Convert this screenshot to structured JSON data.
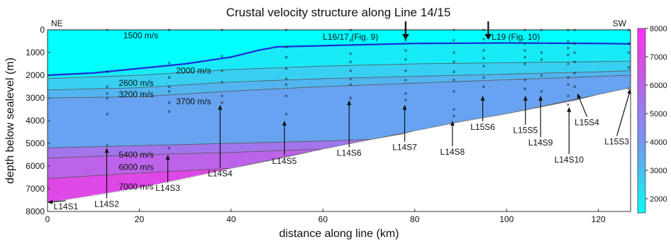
{
  "chart_data": {
    "type": "area",
    "title": "Crustal velocity structure along Line 14/15",
    "xlabel": "distance along line (km)",
    "ylabel": "depth below sealevel (m)",
    "xlim": [
      0,
      127
    ],
    "ylim": [
      8000,
      0
    ],
    "x_ticks": [
      0,
      20,
      40,
      60,
      80,
      100,
      120
    ],
    "y_ticks": [
      0,
      1000,
      2000,
      3000,
      4000,
      5000,
      6000,
      7000,
      8000
    ],
    "colorbar": {
      "min": 1500,
      "max": 8000,
      "ticks": [
        2000,
        3000,
        4000,
        5000,
        6000,
        7000,
        8000
      ],
      "colors": [
        "#00ffff",
        "#2fd8f2",
        "#59aef0",
        "#7f8ff0",
        "#9a7aee",
        "#c25fe9",
        "#e046e6",
        "#ff2fff"
      ]
    },
    "direction_labels": {
      "left": "NE",
      "right": "SW"
    },
    "sea_surface_depth": 0,
    "seafloor": {
      "x": [
        0,
        10,
        20,
        30,
        40,
        46,
        50,
        60,
        70,
        80,
        100,
        110,
        120,
        127
      ],
      "y": [
        2000,
        1900,
        1700,
        1500,
        1200,
        900,
        750,
        700,
        650,
        600,
        580,
        590,
        600,
        620
      ]
    },
    "basement": {
      "x": [
        0,
        10,
        20,
        30,
        40,
        50,
        60,
        70,
        77,
        80,
        90,
        100,
        110,
        115,
        120,
        127
      ],
      "y": [
        7600,
        7300,
        6950,
        6550,
        6100,
        5700,
        5250,
        4850,
        4600,
        4450,
        4050,
        3700,
        3300,
        3100,
        2850,
        2550
      ]
    },
    "layers": [
      {
        "label": "2000 m/s",
        "velocity": 2000,
        "x": [
          0,
          20,
          40,
          60,
          80,
          100,
          120,
          127
        ],
        "y": [
          2150,
          2000,
          1750,
          1600,
          1500,
          1450,
          1400,
          1380
        ]
      },
      {
        "label": "2600 m/s",
        "velocity": 2600,
        "x": [
          0,
          20,
          40,
          60,
          80,
          100,
          120,
          127
        ],
        "y": [
          2650,
          2550,
          2300,
          2150,
          2050,
          1950,
          1850,
          1800
        ]
      },
      {
        "label": "3200 m/s",
        "velocity": 3200,
        "x": [
          0,
          20,
          40,
          60,
          80,
          100,
          120,
          127
        ],
        "y": [
          3000,
          2950,
          2700,
          2500,
          2350,
          2200,
          2050,
          2000
        ]
      },
      {
        "label": "3700 m/s",
        "velocity": 3700,
        "x": [
          0,
          20,
          40,
          60,
          80,
          100,
          120,
          127
        ],
        "y": [
          5200,
          5100,
          5000,
          4900,
          4750,
          4200,
          3500,
          2550
        ]
      },
      {
        "label": "5400 m/s",
        "velocity": 5400,
        "x": [
          0,
          20,
          40,
          60,
          80,
          100,
          120,
          127
        ],
        "y": [
          5650,
          5500,
          5400,
          5250,
          4600,
          3700,
          2850,
          2550
        ]
      },
      {
        "label": "6000 m/s",
        "velocity": 6000,
        "x": [
          0,
          20,
          40,
          60,
          80,
          100,
          120,
          127
        ],
        "y": [
          6550,
          6300,
          6100,
          5250,
          4450,
          3700,
          2850,
          2550
        ]
      },
      {
        "label": "7000 m/s",
        "velocity": 7000,
        "x": [
          0,
          20,
          40,
          60,
          80,
          100,
          120,
          127
        ],
        "y": [
          7600,
          6950,
          6100,
          5250,
          4450,
          3700,
          2850,
          2550
        ]
      }
    ],
    "water_label": "1500 m/s",
    "velocity_labels": [
      {
        "text": "1500 m/s",
        "x": 16.5,
        "y": 250
      },
      {
        "text": "2000 m/s",
        "x": 28,
        "y": 1800
      },
      {
        "text": "2600 m/s",
        "x": 15.5,
        "y": 2350
      },
      {
        "text": "3200 m/s",
        "x": 15.5,
        "y": 2850
      },
      {
        "text": "3700 m/s",
        "x": 28,
        "y": 3150
      },
      {
        "text": "5400 m/s",
        "x": 15.5,
        "y": 5500
      },
      {
        "text": "6000 m/s",
        "x": 15.5,
        "y": 6050
      },
      {
        "text": "7000 m/s",
        "x": 15.5,
        "y": 6900
      }
    ],
    "stations": [
      {
        "name": "L14S1",
        "x": 0,
        "y": 7600,
        "label_x": 4,
        "label_y": 7900
      },
      {
        "name": "L14S2",
        "x": 12.9,
        "y": 5200,
        "label_x": 12.9,
        "label_y": 7800
      },
      {
        "name": "L14S3",
        "x": 26.2,
        "y": 5500,
        "label_x": 26.2,
        "label_y": 7100
      },
      {
        "name": "L14S4",
        "x": 37.6,
        "y": 3300,
        "label_x": 37.6,
        "label_y": 6450
      },
      {
        "name": "L14S5",
        "x": 51.6,
        "y": 4000,
        "label_x": 51.6,
        "label_y": 5900
      },
      {
        "name": "L14S6",
        "x": 65.7,
        "y": 3100,
        "label_x": 65.7,
        "label_y": 5550
      },
      {
        "name": "L14S7",
        "x": 77.8,
        "y": 3300,
        "label_x": 77.8,
        "label_y": 5300
      },
      {
        "name": "L14S8",
        "x": 88.2,
        "y": 4000,
        "label_x": 88.2,
        "label_y": 5500
      },
      {
        "name": "L15S6",
        "x": 94.8,
        "y": 2900,
        "label_x": 94.8,
        "label_y": 4400
      },
      {
        "name": "L15S5",
        "x": 104.1,
        "y": 2900,
        "label_x": 104.1,
        "label_y": 4550
      },
      {
        "name": "L14S9",
        "x": 107.4,
        "y": 2900,
        "label_x": 107.4,
        "label_y": 5100
      },
      {
        "name": "L14S10",
        "x": 113.6,
        "y": 3400,
        "label_x": 113.6,
        "label_y": 5850
      },
      {
        "name": "L15S4",
        "x": 115.4,
        "y": 2800,
        "label_x": 117.5,
        "label_y": 4200
      },
      {
        "name": "L15S3",
        "x": 127,
        "y": 2600,
        "label_x": 124,
        "label_y": 5050
      }
    ],
    "crossings": [
      {
        "text": "L16/17 (Fig. 9)",
        "x": 78,
        "label_x": 66
      },
      {
        "text": "L19 (Fig. 10)",
        "x": 96,
        "label_x": 102
      }
    ],
    "receivers": [
      {
        "x": 13,
        "y": [
          0,
          1850,
          2500,
          2800,
          3000,
          3700,
          5100
        ]
      },
      {
        "x": 26.5,
        "y": [
          0,
          1450,
          2100,
          2500,
          2700,
          3200,
          3600,
          5200
        ]
      },
      {
        "x": 38,
        "y": [
          0,
          1150,
          1800,
          2300,
          2900,
          3200
        ]
      },
      {
        "x": 52,
        "y": [
          0,
          750,
          1200,
          1700,
          2150,
          2400,
          2900,
          3700
        ]
      },
      {
        "x": 66,
        "y": [
          0,
          450,
          1050,
          1400,
          1800,
          2150,
          2400,
          3000
        ]
      },
      {
        "x": 78,
        "y": [
          0,
          450,
          900,
          1300,
          1800,
          2200,
          2800,
          3100
        ]
      },
      {
        "x": 88.5,
        "y": [
          0,
          450,
          1000,
          1400,
          1850,
          2200,
          2700,
          3500,
          3800
        ]
      },
      {
        "x": 95,
        "y": [
          0,
          400,
          900,
          1250,
          1600,
          2100,
          2500
        ]
      },
      {
        "x": 104,
        "y": [
          0,
          600,
          900,
          1200,
          1500,
          2200,
          2600
        ]
      },
      {
        "x": 107.6,
        "y": [
          0,
          1000,
          1300,
          2000,
          2700
        ]
      },
      {
        "x": 113.4,
        "y": [
          0,
          500,
          800,
          1100,
          1500,
          2100,
          2400,
          2900,
          3300
        ]
      },
      {
        "x": 114.8,
        "y": [
          0,
          600,
          1000,
          1400,
          1900,
          2500
        ]
      },
      {
        "x": 126.6,
        "y": [
          0,
          600,
          1000,
          1650,
          2600
        ]
      }
    ]
  }
}
